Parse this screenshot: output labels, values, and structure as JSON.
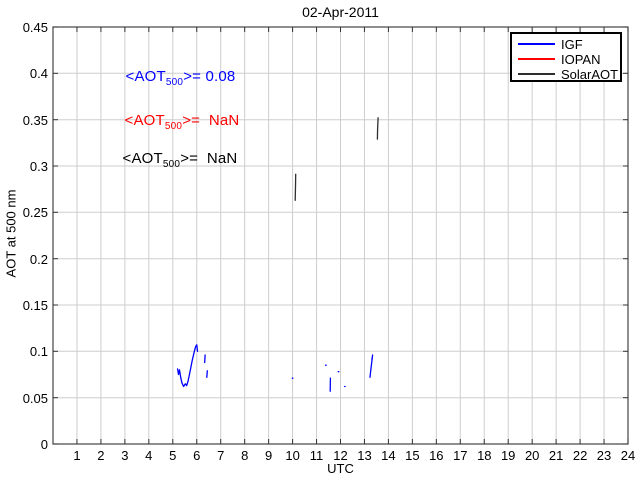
{
  "chart_data": {
    "type": "line",
    "title": "02-Apr-2011",
    "xlabel": "UTC",
    "ylabel": "AOT at 500 nm",
    "xlim": [
      0,
      24
    ],
    "ylim": [
      0,
      0.45
    ],
    "grid": true,
    "legend_position": "top-right",
    "xticks": [
      1,
      2,
      3,
      4,
      5,
      6,
      7,
      8,
      9,
      10,
      11,
      12,
      13,
      14,
      15,
      16,
      17,
      18,
      19,
      20,
      21,
      22,
      23,
      24
    ],
    "yticks": [
      0,
      0.05,
      0.1,
      0.15,
      0.2,
      0.25,
      0.3,
      0.35,
      0.4,
      0.45
    ],
    "ytick_labels": [
      "0",
      "0.05",
      "0.1",
      "0.15",
      "0.2",
      "0.25",
      "0.3",
      "0.35",
      "0.4",
      "0.45"
    ],
    "series": [
      {
        "name": "IGF",
        "color": "#0000ff",
        "mean_aot_500": "0.08",
        "segments": [
          [
            [
              5.2,
              0.081
            ],
            [
              5.24,
              0.075
            ],
            [
              5.28,
              0.08
            ],
            [
              5.33,
              0.072
            ],
            [
              5.38,
              0.066
            ],
            [
              5.45,
              0.062
            ],
            [
              5.52,
              0.065
            ],
            [
              5.58,
              0.063
            ],
            [
              5.64,
              0.068
            ],
            [
              5.72,
              0.078
            ],
            [
              5.8,
              0.089
            ],
            [
              5.88,
              0.098
            ],
            [
              5.95,
              0.105
            ],
            [
              6.0,
              0.107
            ],
            [
              6.03,
              0.1
            ]
          ],
          [
            [
              6.33,
              0.088
            ],
            [
              6.35,
              0.096
            ]
          ],
          [
            [
              6.42,
              0.072
            ],
            [
              6.44,
              0.079
            ]
          ],
          [
            [
              9.99,
              0.071
            ],
            [
              10.01,
              0.071
            ]
          ],
          [
            [
              11.38,
              0.085
            ],
            [
              11.4,
              0.085
            ]
          ],
          [
            [
              11.57,
              0.057
            ],
            [
              11.58,
              0.071
            ]
          ],
          [
            [
              11.91,
              0.078
            ],
            [
              11.93,
              0.078
            ]
          ],
          [
            [
              12.17,
              0.062
            ],
            [
              12.19,
              0.062
            ]
          ],
          [
            [
              13.23,
              0.072
            ],
            [
              13.26,
              0.079
            ],
            [
              13.3,
              0.087
            ],
            [
              13.33,
              0.094
            ],
            [
              13.31,
              0.091
            ],
            [
              13.34,
              0.096
            ]
          ]
        ]
      },
      {
        "name": "IOPAN",
        "color": "#ff0000",
        "mean_aot_500": "NaN",
        "segments": []
      },
      {
        "name": "SolarAOT",
        "color": "#2e2e2e",
        "mean_aot_500": "NaN",
        "segments": [
          [
            [
              10.11,
              0.263
            ],
            [
              10.12,
              0.278
            ],
            [
              10.13,
              0.291
            ]
          ],
          [
            [
              13.54,
              0.329
            ],
            [
              13.55,
              0.34
            ],
            [
              13.57,
              0.352
            ]
          ]
        ]
      }
    ],
    "annotations": [
      {
        "prefix": "<AOT",
        "sub": "500",
        "rest": ">= 0.08",
        "color": "#0000ff"
      },
      {
        "prefix": "<AOT",
        "sub": "500",
        "rest": ">=  NaN",
        "color": "#ff0000"
      },
      {
        "prefix": "<AOT",
        "sub": "500",
        "rest": ">=  NaN",
        "color": "#000000"
      }
    ]
  }
}
